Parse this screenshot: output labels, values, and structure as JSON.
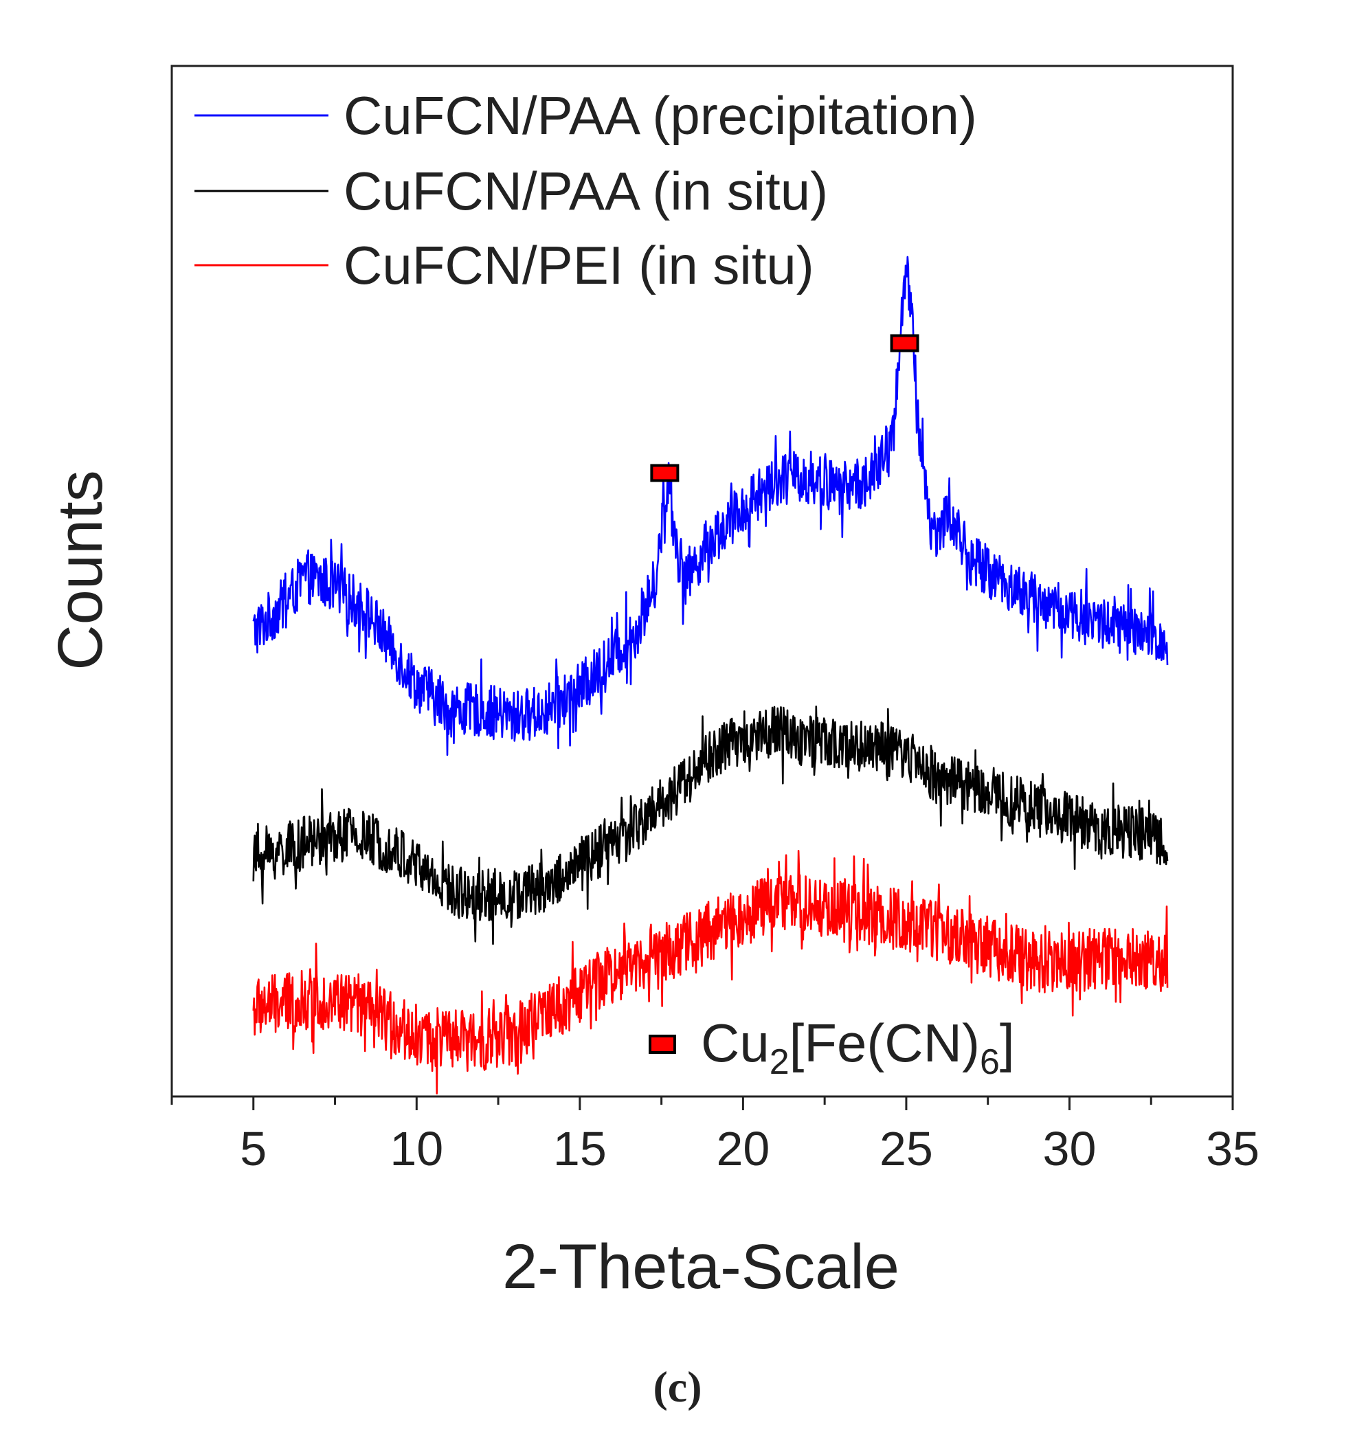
{
  "chart_data": {
    "type": "line",
    "title": "",
    "xlabel": "2-Theta-Scale",
    "ylabel": "Counts",
    "xlim": [
      2.5,
      35
    ],
    "ylim": [
      0,
      1000
    ],
    "x_ticks": [
      5,
      10,
      15,
      20,
      25,
      30,
      35
    ],
    "x_tick_labels": [
      "5",
      "10",
      "15",
      "20",
      "25",
      "30",
      "35"
    ],
    "y_ticks_shown": false,
    "grid": false,
    "legend_position": "top-left",
    "series": [
      {
        "name": "CuFCN/PAA (precipitation)",
        "color": "#0000ff",
        "noise": 26,
        "x": [
          5,
          6,
          6.6,
          7.5,
          8.5,
          10,
          11,
          12,
          13,
          14,
          15,
          16,
          16.8,
          17.3,
          17.55,
          17.7,
          17.85,
          18.2,
          19,
          20,
          21,
          22,
          23,
          24,
          24.6,
          24.85,
          25,
          25.15,
          25.4,
          25.8,
          26.3,
          27,
          28,
          29,
          30,
          31,
          32,
          33
        ],
        "values": [
          450,
          480,
          505,
          495,
          470,
          400,
          375,
          375,
          368,
          375,
          395,
          425,
          455,
          500,
          560,
          600,
          560,
          500,
          540,
          570,
          600,
          600,
          590,
          600,
          640,
          760,
          800,
          760,
          640,
          545,
          565,
          520,
          500,
          480,
          470,
          460,
          450,
          440
        ]
      },
      {
        "name": "CuFCN/PAA (in situ)",
        "color": "#000000",
        "noise": 26,
        "x": [
          5,
          6,
          7,
          8,
          9,
          10,
          11,
          12,
          13,
          14,
          15,
          16,
          17,
          18,
          19,
          20,
          21,
          22,
          23,
          24,
          25,
          26,
          27,
          28,
          29,
          30,
          31,
          32,
          33
        ],
        "values": [
          230,
          240,
          250,
          255,
          245,
          225,
          200,
          195,
          195,
          205,
          225,
          245,
          270,
          300,
          330,
          350,
          355,
          345,
          340,
          340,
          330,
          310,
          300,
          290,
          280,
          270,
          260,
          255,
          250
        ]
      },
      {
        "name": "CuFCN/PEI (in situ)",
        "color": "#ff0000",
        "noise": 30,
        "x": [
          5,
          6,
          7,
          8,
          9,
          10,
          11,
          12,
          13,
          14,
          15,
          16,
          17,
          18,
          19,
          20,
          21,
          22,
          23,
          24,
          25,
          26,
          27,
          28,
          29,
          30,
          31,
          32,
          33
        ],
        "values": [
          85,
          90,
          95,
          90,
          75,
          60,
          55,
          55,
          60,
          80,
          100,
          120,
          135,
          145,
          160,
          175,
          190,
          185,
          180,
          175,
          170,
          160,
          150,
          140,
          130,
          130,
          135,
          135,
          130
        ]
      }
    ],
    "peak_markers": [
      {
        "x": 17.6,
        "y": 605,
        "label": "Cu2[Fe(CN)6]"
      },
      {
        "x": 24.95,
        "y": 731,
        "label": "Cu2[Fe(CN)6]"
      }
    ],
    "annotation": {
      "marker_color": "#ff0000",
      "text": "Cu",
      "sub1": "2",
      "mid": "[Fe(CN)",
      "sub2": "6",
      "end": "]"
    }
  },
  "panel_label": "(c)"
}
